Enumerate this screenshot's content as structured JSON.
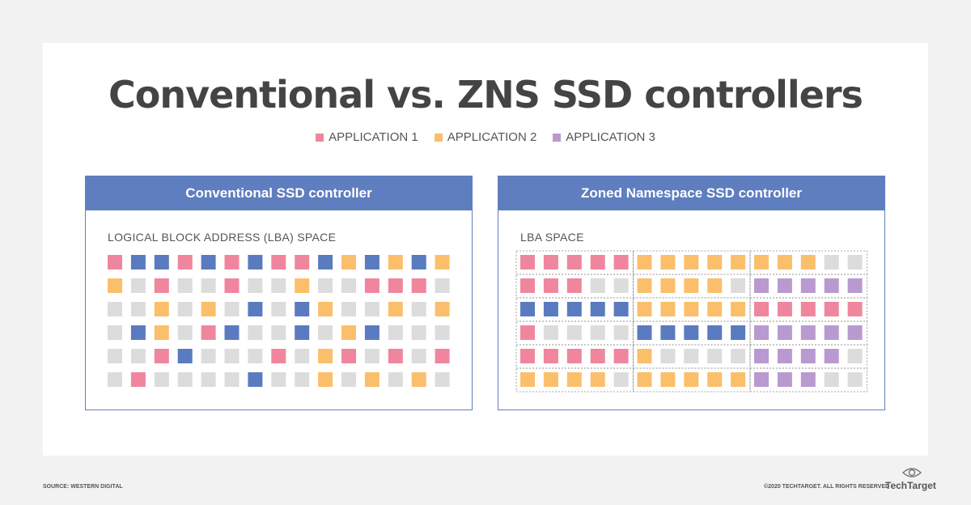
{
  "title": "Conventional vs. ZNS SSD controllers",
  "legend": [
    {
      "label": "APPLICATION 1",
      "color": "#f0869e"
    },
    {
      "label": "APPLICATION 2",
      "color": "#fbbf6b"
    },
    {
      "label": "APPLICATION 3",
      "color": "#b99ad0"
    }
  ],
  "colors": {
    "a1": "#f0869e",
    "a2": "#fbbf6b",
    "a3": "#b99ad0",
    "b": "#5b7bc0",
    "e": "#dcdcdc"
  },
  "left_panel": {
    "title": "Conventional SSD controller",
    "subtitle": "LOGICAL BLOCK ADDRESS (LBA) SPACE",
    "grid": [
      [
        "a1",
        "b",
        "b",
        "a1",
        "b",
        "a1",
        "b",
        "a1",
        "a1",
        "b",
        "a2",
        "b",
        "a2",
        "b",
        "a2"
      ],
      [
        "a2",
        "e",
        "a1",
        "e",
        "e",
        "a1",
        "e",
        "e",
        "a2",
        "e",
        "e",
        "a1",
        "a1",
        "a1",
        "e"
      ],
      [
        "e",
        "e",
        "a2",
        "e",
        "a2",
        "e",
        "b",
        "e",
        "b",
        "a2",
        "e",
        "e",
        "a2",
        "e",
        "a2"
      ],
      [
        "e",
        "b",
        "a2",
        "e",
        "a1",
        "b",
        "e",
        "e",
        "b",
        "e",
        "a2",
        "b",
        "e",
        "e",
        "e"
      ],
      [
        "e",
        "e",
        "a1",
        "b",
        "e",
        "e",
        "e",
        "a1",
        "e",
        "a2",
        "a1",
        "e",
        "a1",
        "e",
        "a1"
      ],
      [
        "e",
        "a1",
        "e",
        "e",
        "e",
        "e",
        "b",
        "e",
        "e",
        "a2",
        "e",
        "a2",
        "e",
        "a2",
        "e"
      ]
    ]
  },
  "right_panel": {
    "title": "Zoned Namespace SSD controller",
    "subtitle": "LBA SPACE",
    "grid": [
      [
        "a1",
        "a1",
        "a1",
        "a1",
        "a1",
        "a2",
        "a2",
        "a2",
        "a2",
        "a2",
        "a2",
        "a2",
        "a2",
        "e",
        "e"
      ],
      [
        "a1",
        "a1",
        "a1",
        "e",
        "e",
        "a2",
        "a2",
        "a2",
        "a2",
        "e",
        "a3",
        "a3",
        "a3",
        "a3",
        "a3"
      ],
      [
        "b",
        "b",
        "b",
        "b",
        "b",
        "a2",
        "a2",
        "a2",
        "a2",
        "a2",
        "a1",
        "a1",
        "a1",
        "a1",
        "a1"
      ],
      [
        "a1",
        "e",
        "e",
        "e",
        "e",
        "b",
        "b",
        "b",
        "b",
        "b",
        "a3",
        "a3",
        "a3",
        "a3",
        "a3"
      ],
      [
        "a1",
        "a1",
        "a1",
        "a1",
        "a1",
        "a2",
        "e",
        "e",
        "e",
        "e",
        "a3",
        "a3",
        "a3",
        "a3",
        "e"
      ],
      [
        "a2",
        "a2",
        "a2",
        "a2",
        "e",
        "a2",
        "a2",
        "a2",
        "a2",
        "a2",
        "a3",
        "a3",
        "a3",
        "e",
        "e"
      ]
    ]
  },
  "footer": {
    "source": "SOURCE: WESTERN DIGITAL",
    "copyright": "©2020 TECHTARGET. ALL RIGHTS RESERVED",
    "logo": "TechTarget"
  }
}
